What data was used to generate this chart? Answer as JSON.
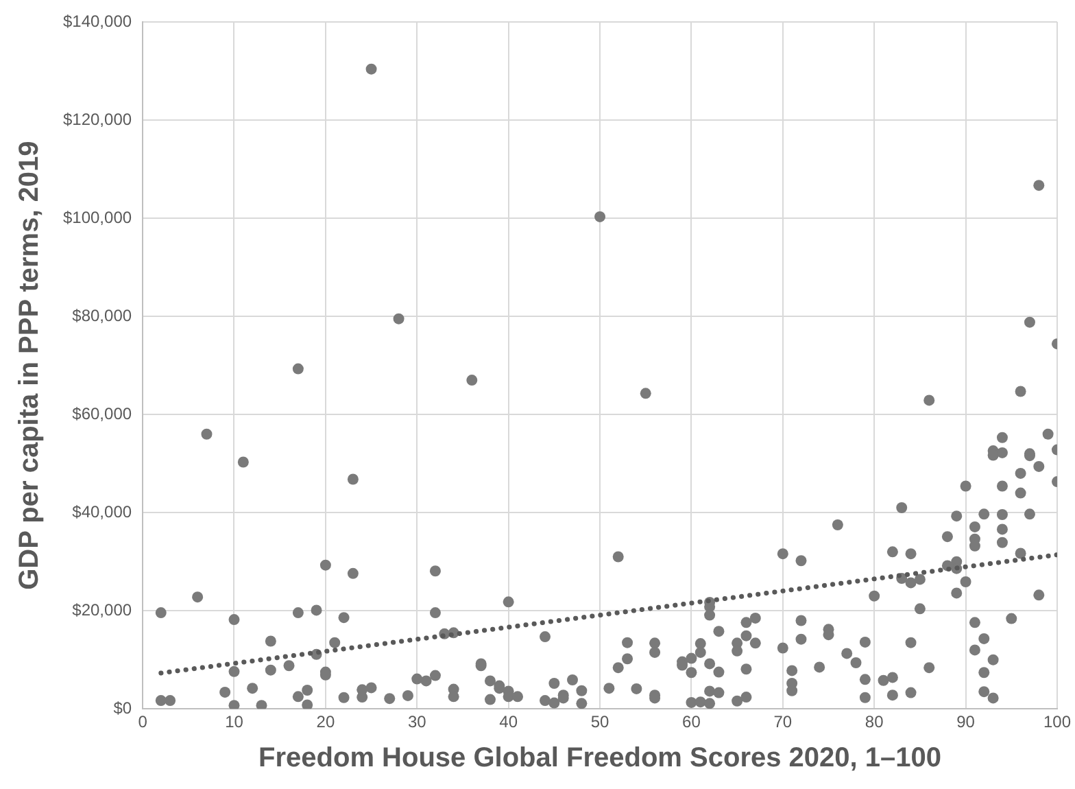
{
  "chart_data": {
    "type": "scatter",
    "xlabel": "Freedom House Global Freedom Scores 2020, 1–100",
    "ylabel": "GDP per capita in PPP terms, 2019",
    "xlim": [
      0,
      100
    ],
    "xticks": [
      0,
      10,
      20,
      30,
      40,
      50,
      60,
      70,
      80,
      90,
      100
    ],
    "ylim": [
      0,
      140000
    ],
    "yticks": [
      {
        "value": 0,
        "label": "$0"
      },
      {
        "value": 20000,
        "label": "$20,000"
      },
      {
        "value": 40000,
        "label": "$40,000"
      },
      {
        "value": 60000,
        "label": "$60,000"
      },
      {
        "value": 80000,
        "label": "$80,000"
      },
      {
        "value": 100000,
        "label": "$100,000"
      },
      {
        "value": 120000,
        "label": "$120,000"
      },
      {
        "value": 140000,
        "label": "$140,000"
      }
    ],
    "grid": true,
    "legend": false,
    "series": [
      {
        "color": "#7a7a7a",
        "marker": "circle",
        "x": [
          2,
          2,
          3,
          6,
          7,
          9,
          10,
          10,
          10,
          11,
          12,
          13,
          14,
          14,
          16,
          17,
          17,
          17,
          18,
          18,
          19,
          19,
          20,
          20,
          20,
          21,
          22,
          22,
          23,
          23,
          24,
          24,
          25,
          25,
          27,
          28,
          29,
          30,
          31,
          32,
          32,
          32,
          33,
          34,
          34,
          34,
          36,
          37,
          37,
          38,
          38,
          39,
          39,
          40,
          40,
          40,
          41,
          44,
          44,
          45,
          45,
          46,
          46,
          47,
          48,
          48,
          50,
          51,
          52,
          52,
          53,
          53,
          54,
          55,
          56,
          56,
          56,
          56,
          59,
          59,
          60,
          60,
          60,
          61,
          61,
          61,
          62,
          62,
          62,
          62,
          62,
          62,
          63,
          63,
          63,
          65,
          65,
          65,
          66,
          66,
          66,
          66,
          67,
          67,
          70,
          70,
          71,
          71,
          71,
          72,
          72,
          72,
          74,
          75,
          75,
          76,
          77,
          78,
          79,
          79,
          79,
          80,
          81,
          82,
          82,
          82,
          83,
          83,
          84,
          84,
          84,
          84,
          85,
          85,
          86,
          86,
          88,
          88,
          89,
          89,
          89,
          89,
          90,
          90,
          91,
          91,
          91,
          91,
          91,
          92,
          92,
          92,
          92,
          93,
          93,
          93,
          93,
          94,
          94,
          94,
          94,
          94,
          94,
          95,
          96,
          96,
          96,
          96,
          97,
          97,
          97,
          97,
          98,
          98,
          98,
          99,
          100,
          100,
          100
        ],
        "values": [
          19600,
          1700,
          1700,
          22800,
          56000,
          3400,
          18200,
          7600,
          700,
          50300,
          4200,
          700,
          13800,
          7900,
          8800,
          69300,
          19600,
          2500,
          3800,
          800,
          20100,
          11100,
          29300,
          7500,
          6900,
          13500,
          18600,
          2300,
          46800,
          27600,
          3900,
          2400,
          130400,
          4300,
          2100,
          79500,
          2700,
          6100,
          5700,
          28100,
          19600,
          6800,
          15300,
          15500,
          4000,
          2500,
          67000,
          9200,
          8800,
          5700,
          1900,
          4700,
          4200,
          21800,
          3600,
          2500,
          2500,
          14700,
          1700,
          5200,
          1200,
          2800,
          2200,
          5900,
          3700,
          1100,
          100300,
          4200,
          31000,
          8400,
          13500,
          10200,
          4100,
          64300,
          13400,
          11500,
          2800,
          2200,
          9600,
          8900,
          10300,
          7400,
          1300,
          13300,
          11500,
          1400,
          21700,
          20800,
          19100,
          9200,
          3600,
          1100,
          15800,
          7500,
          3300,
          13400,
          11800,
          1600,
          17600,
          14900,
          8100,
          2400,
          18500,
          13400,
          31600,
          12400,
          7800,
          5200,
          3700,
          30200,
          18000,
          14200,
          8500,
          16200,
          15100,
          37500,
          11300,
          9400,
          13600,
          6000,
          2300,
          23000,
          5800,
          32000,
          6400,
          2800,
          41000,
          26600,
          31600,
          25700,
          13500,
          3300,
          26400,
          20400,
          62900,
          8400,
          35100,
          29200,
          39300,
          30000,
          28600,
          23600,
          45400,
          25900,
          37100,
          34600,
          33200,
          17600,
          12000,
          39700,
          14300,
          7400,
          3500,
          52600,
          51700,
          10000,
          2200,
          55300,
          52200,
          45400,
          39600,
          36600,
          33900,
          18400,
          64700,
          48000,
          44000,
          31700,
          78800,
          52000,
          51600,
          39700,
          106700,
          49400,
          23200,
          56000,
          74400,
          52800,
          46300
        ]
      },
      {
        "type": "line",
        "color": "#595959",
        "line_style": "dotted",
        "marker": "none",
        "x": [
          2,
          100
        ],
        "values": [
          7300,
          31400
        ]
      }
    ]
  }
}
